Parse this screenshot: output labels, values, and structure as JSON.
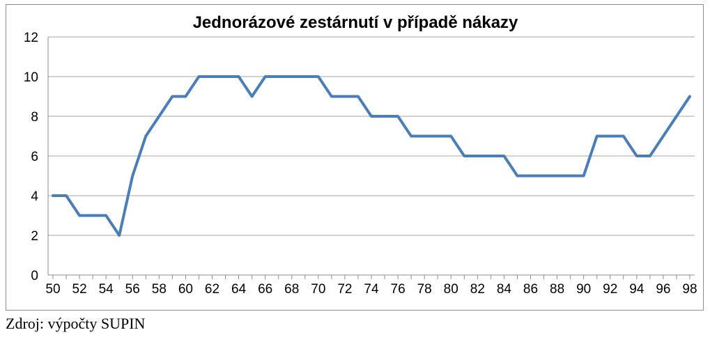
{
  "chart_data": {
    "type": "line",
    "title": "Jednorázové zestárnutí v případě nákazy",
    "xlabel": "",
    "ylabel": "",
    "x": [
      50,
      51,
      52,
      53,
      54,
      55,
      56,
      57,
      58,
      59,
      60,
      61,
      62,
      63,
      64,
      65,
      66,
      67,
      68,
      69,
      70,
      71,
      72,
      73,
      74,
      75,
      76,
      77,
      78,
      79,
      80,
      81,
      82,
      83,
      84,
      85,
      86,
      87,
      88,
      89,
      90,
      91,
      92,
      93,
      94,
      95,
      96,
      97,
      98
    ],
    "series": [
      {
        "values": [
          4,
          4,
          3,
          3,
          3,
          2,
          5,
          7,
          8,
          9,
          9,
          10,
          10,
          10,
          10,
          9,
          10,
          10,
          10,
          10,
          10,
          9,
          9,
          9,
          8,
          8,
          8,
          7,
          7,
          7,
          7,
          6,
          6,
          6,
          6,
          5,
          5,
          5,
          5,
          5,
          5,
          7,
          7,
          7,
          6,
          6,
          7,
          8,
          9
        ],
        "color": "#4a7ebb"
      }
    ],
    "ylim": [
      0,
      12
    ],
    "yticks": [
      0,
      2,
      4,
      6,
      8,
      10,
      12
    ],
    "xticks": [
      50,
      52,
      54,
      56,
      58,
      60,
      62,
      64,
      66,
      68,
      70,
      72,
      74,
      76,
      78,
      80,
      82,
      84,
      86,
      88,
      90,
      92,
      94,
      96,
      98
    ],
    "grid": "horizontal",
    "gridColor": "#a6a6a6",
    "legend": "none"
  },
  "source": "Zdroj: výpočty SUPIN"
}
